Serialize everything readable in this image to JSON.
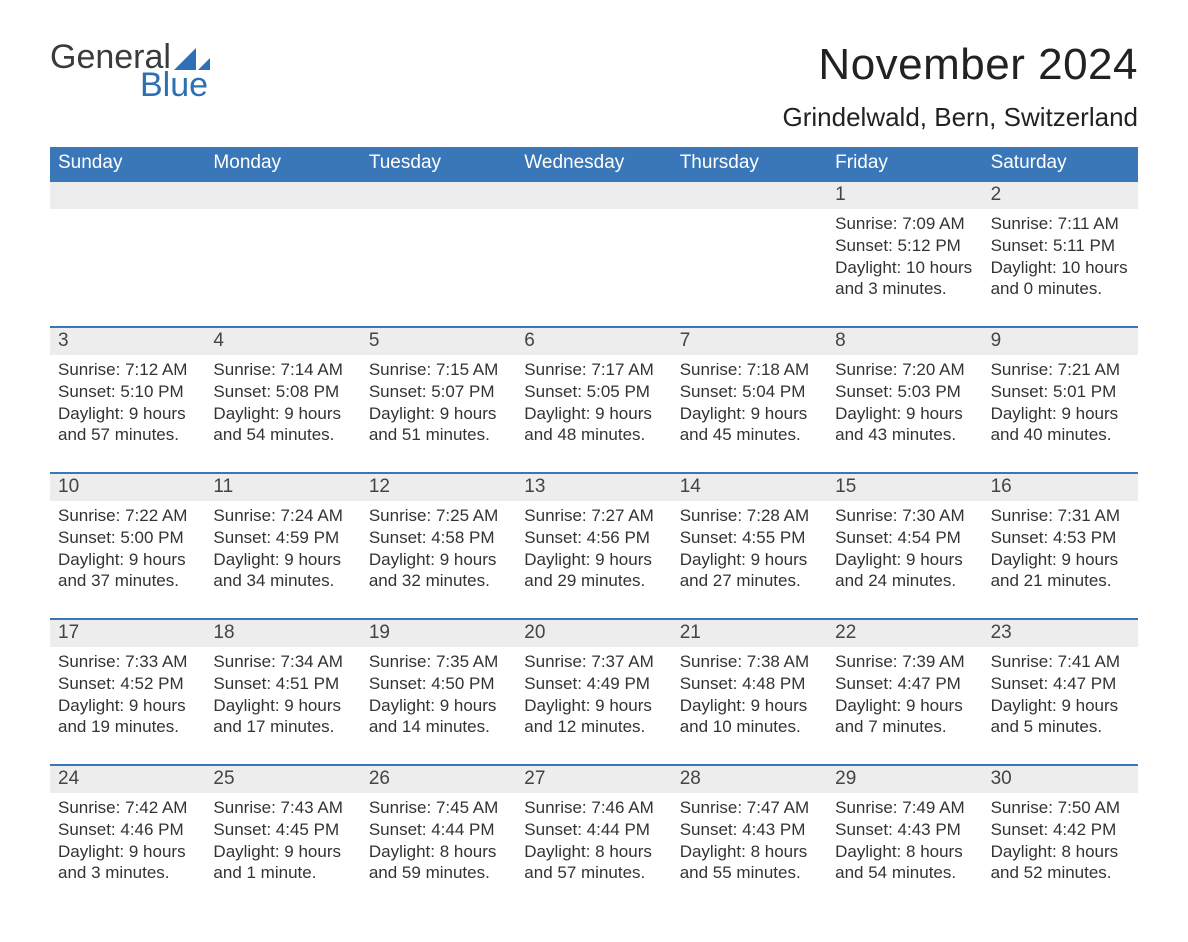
{
  "logo": {
    "word1": "General",
    "word2": "Blue"
  },
  "title": "November 2024",
  "location": "Grindelwald, Bern, Switzerland",
  "colors": {
    "header_bg": "#3a77b8",
    "header_text": "#ffffff",
    "rule": "#3a77b8",
    "strip_bg": "#ededed",
    "text": "#333333",
    "logo_blue": "#2f6fb3"
  },
  "weekdays": [
    "Sunday",
    "Monday",
    "Tuesday",
    "Wednesday",
    "Thursday",
    "Friday",
    "Saturday"
  ],
  "weeks": [
    [
      null,
      null,
      null,
      null,
      null,
      {
        "n": "1",
        "sunrise": "7:09 AM",
        "sunset": "5:12 PM",
        "daylight": "10 hours and 3 minutes."
      },
      {
        "n": "2",
        "sunrise": "7:11 AM",
        "sunset": "5:11 PM",
        "daylight": "10 hours and 0 minutes."
      }
    ],
    [
      {
        "n": "3",
        "sunrise": "7:12 AM",
        "sunset": "5:10 PM",
        "daylight": "9 hours and 57 minutes."
      },
      {
        "n": "4",
        "sunrise": "7:14 AM",
        "sunset": "5:08 PM",
        "daylight": "9 hours and 54 minutes."
      },
      {
        "n": "5",
        "sunrise": "7:15 AM",
        "sunset": "5:07 PM",
        "daylight": "9 hours and 51 minutes."
      },
      {
        "n": "6",
        "sunrise": "7:17 AM",
        "sunset": "5:05 PM",
        "daylight": "9 hours and 48 minutes."
      },
      {
        "n": "7",
        "sunrise": "7:18 AM",
        "sunset": "5:04 PM",
        "daylight": "9 hours and 45 minutes."
      },
      {
        "n": "8",
        "sunrise": "7:20 AM",
        "sunset": "5:03 PM",
        "daylight": "9 hours and 43 minutes."
      },
      {
        "n": "9",
        "sunrise": "7:21 AM",
        "sunset": "5:01 PM",
        "daylight": "9 hours and 40 minutes."
      }
    ],
    [
      {
        "n": "10",
        "sunrise": "7:22 AM",
        "sunset": "5:00 PM",
        "daylight": "9 hours and 37 minutes."
      },
      {
        "n": "11",
        "sunrise": "7:24 AM",
        "sunset": "4:59 PM",
        "daylight": "9 hours and 34 minutes."
      },
      {
        "n": "12",
        "sunrise": "7:25 AM",
        "sunset": "4:58 PM",
        "daylight": "9 hours and 32 minutes."
      },
      {
        "n": "13",
        "sunrise": "7:27 AM",
        "sunset": "4:56 PM",
        "daylight": "9 hours and 29 minutes."
      },
      {
        "n": "14",
        "sunrise": "7:28 AM",
        "sunset": "4:55 PM",
        "daylight": "9 hours and 27 minutes."
      },
      {
        "n": "15",
        "sunrise": "7:30 AM",
        "sunset": "4:54 PM",
        "daylight": "9 hours and 24 minutes."
      },
      {
        "n": "16",
        "sunrise": "7:31 AM",
        "sunset": "4:53 PM",
        "daylight": "9 hours and 21 minutes."
      }
    ],
    [
      {
        "n": "17",
        "sunrise": "7:33 AM",
        "sunset": "4:52 PM",
        "daylight": "9 hours and 19 minutes."
      },
      {
        "n": "18",
        "sunrise": "7:34 AM",
        "sunset": "4:51 PM",
        "daylight": "9 hours and 17 minutes."
      },
      {
        "n": "19",
        "sunrise": "7:35 AM",
        "sunset": "4:50 PM",
        "daylight": "9 hours and 14 minutes."
      },
      {
        "n": "20",
        "sunrise": "7:37 AM",
        "sunset": "4:49 PM",
        "daylight": "9 hours and 12 minutes."
      },
      {
        "n": "21",
        "sunrise": "7:38 AM",
        "sunset": "4:48 PM",
        "daylight": "9 hours and 10 minutes."
      },
      {
        "n": "22",
        "sunrise": "7:39 AM",
        "sunset": "4:47 PM",
        "daylight": "9 hours and 7 minutes."
      },
      {
        "n": "23",
        "sunrise": "7:41 AM",
        "sunset": "4:47 PM",
        "daylight": "9 hours and 5 minutes."
      }
    ],
    [
      {
        "n": "24",
        "sunrise": "7:42 AM",
        "sunset": "4:46 PM",
        "daylight": "9 hours and 3 minutes."
      },
      {
        "n": "25",
        "sunrise": "7:43 AM",
        "sunset": "4:45 PM",
        "daylight": "9 hours and 1 minute."
      },
      {
        "n": "26",
        "sunrise": "7:45 AM",
        "sunset": "4:44 PM",
        "daylight": "8 hours and 59 minutes."
      },
      {
        "n": "27",
        "sunrise": "7:46 AM",
        "sunset": "4:44 PM",
        "daylight": "8 hours and 57 minutes."
      },
      {
        "n": "28",
        "sunrise": "7:47 AM",
        "sunset": "4:43 PM",
        "daylight": "8 hours and 55 minutes."
      },
      {
        "n": "29",
        "sunrise": "7:49 AM",
        "sunset": "4:43 PM",
        "daylight": "8 hours and 54 minutes."
      },
      {
        "n": "30",
        "sunrise": "7:50 AM",
        "sunset": "4:42 PM",
        "daylight": "8 hours and 52 minutes."
      }
    ]
  ],
  "labels": {
    "sunrise": "Sunrise: ",
    "sunset": "Sunset: ",
    "daylight": "Daylight: "
  }
}
